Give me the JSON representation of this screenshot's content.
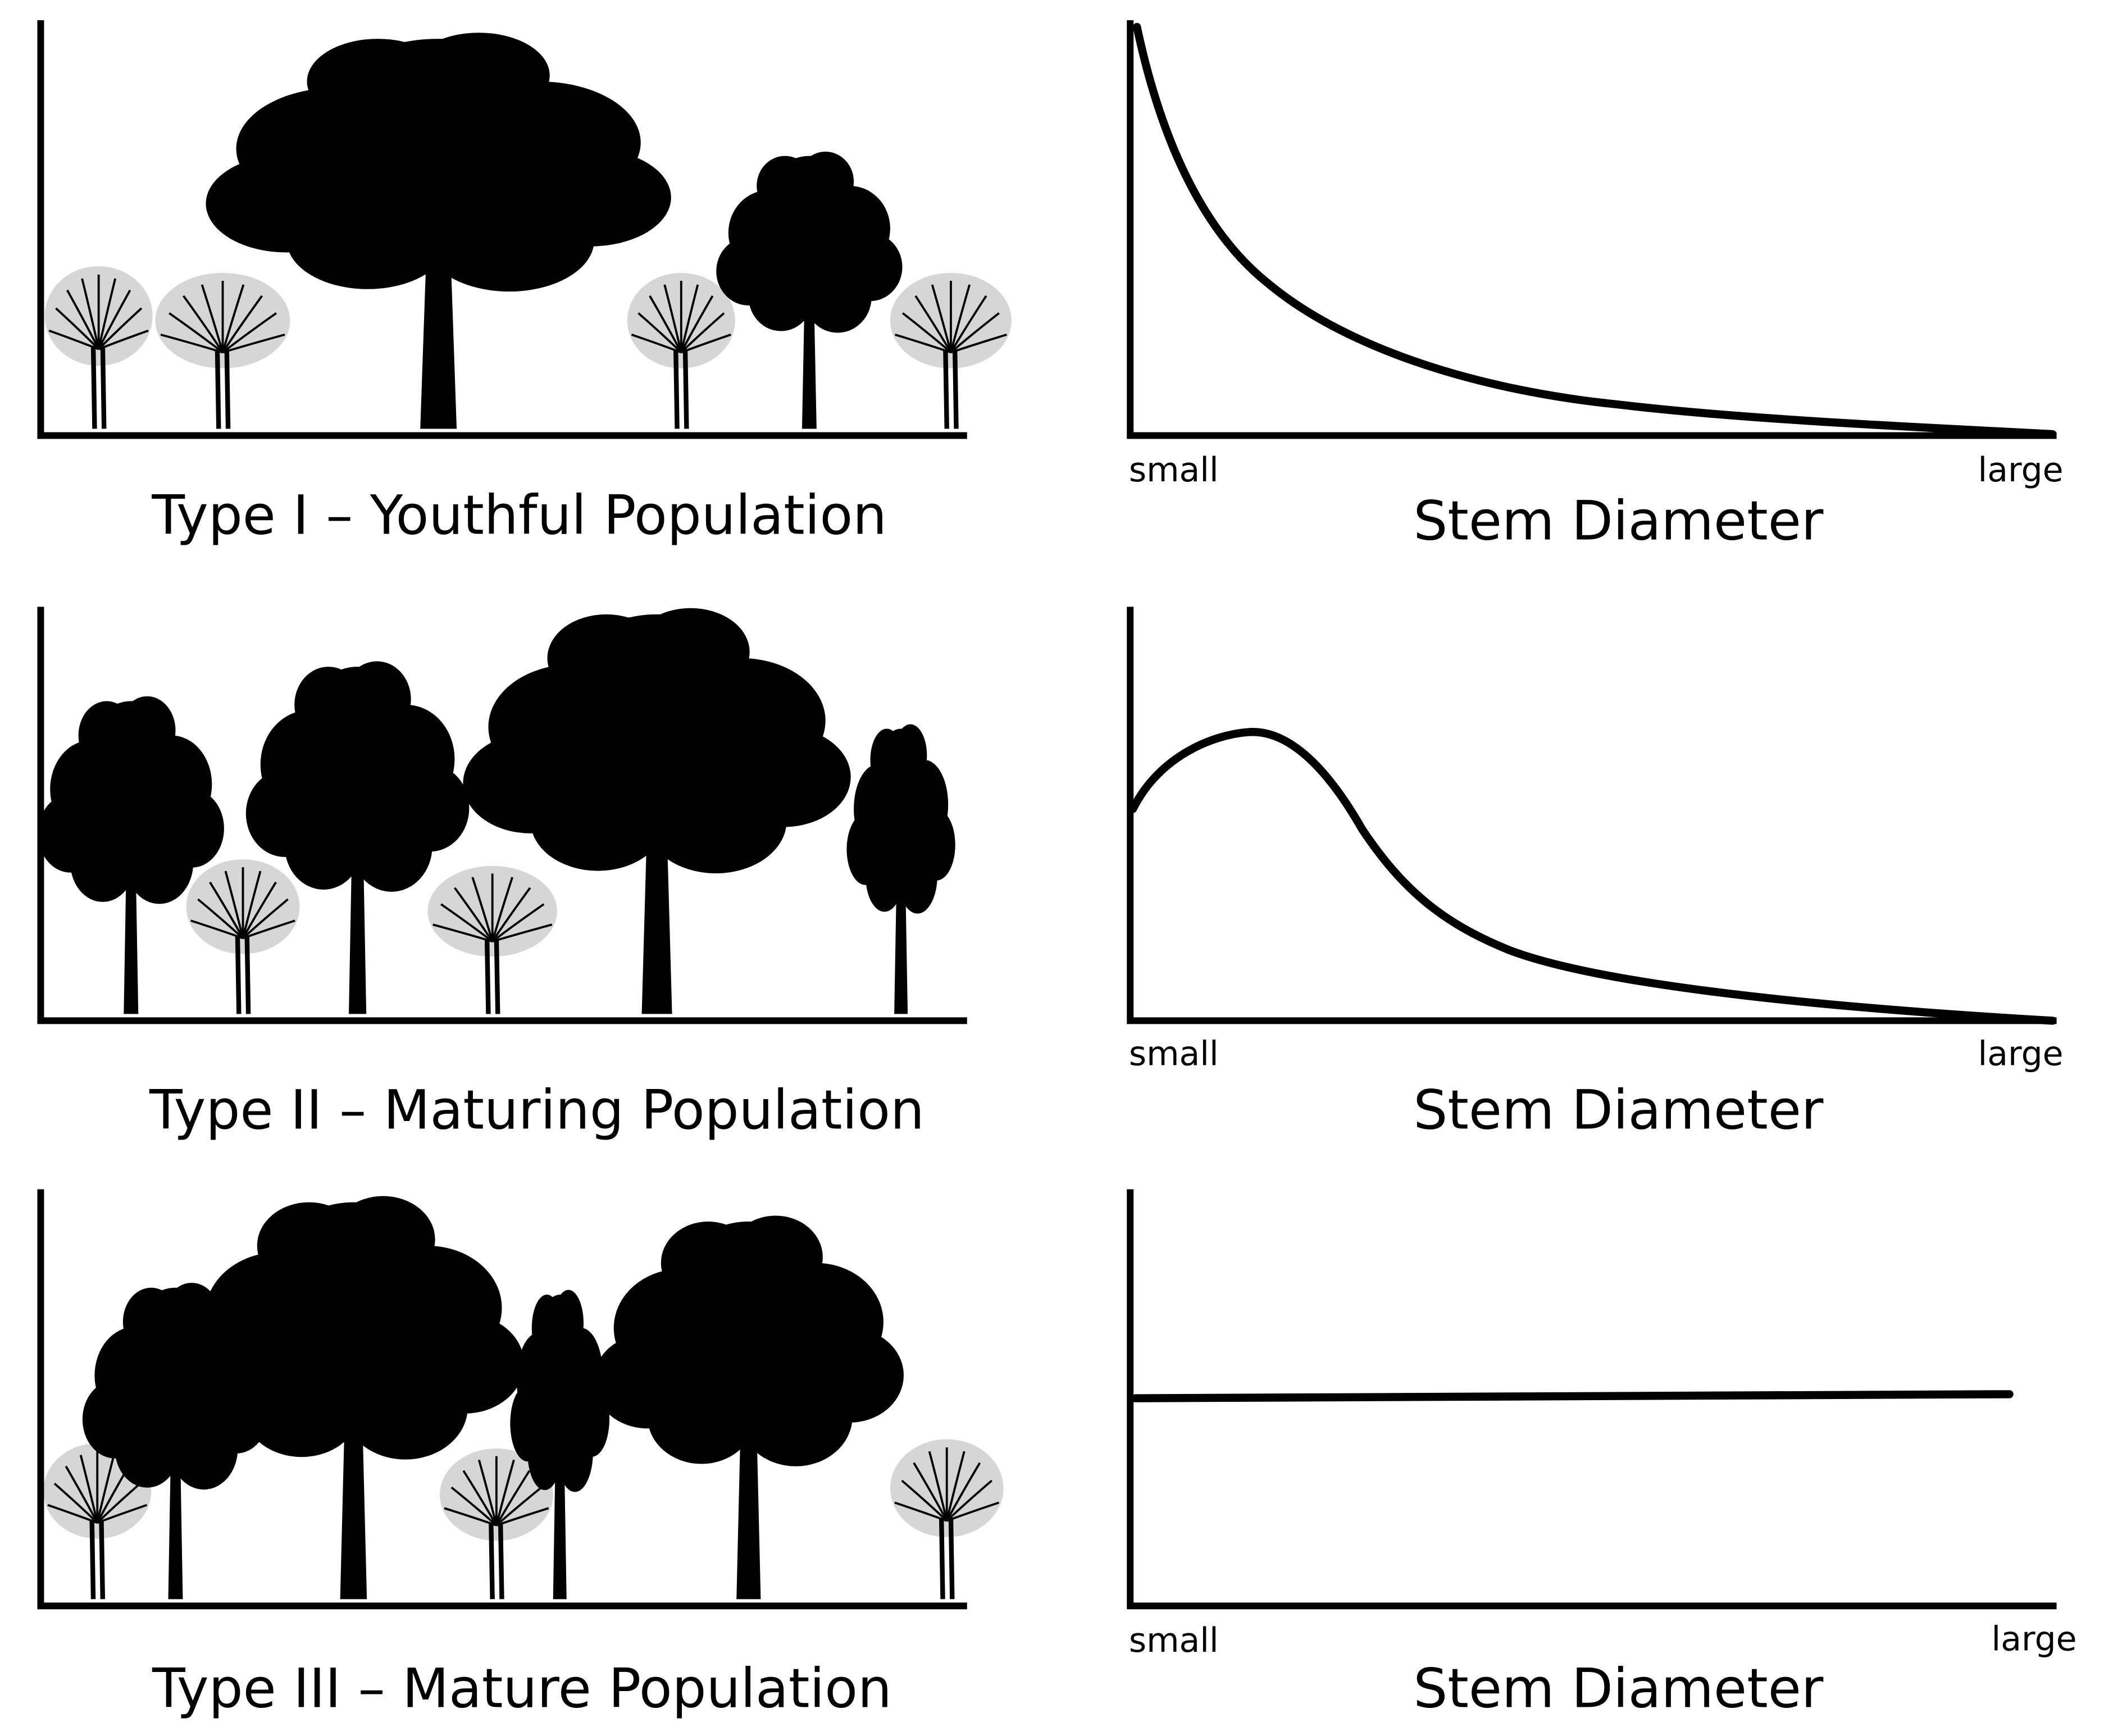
{
  "panels": [
    {
      "caption": "Type I – Youthful Population",
      "axis": {
        "min_label": "small",
        "max_label": "large",
        "title": "Stem Diameter"
      }
    },
    {
      "caption": "Type II – Maturing Population",
      "axis": {
        "min_label": "small",
        "max_label": "large",
        "title": "Stem Diameter"
      }
    },
    {
      "caption": "Type III – Mature Population",
      "axis": {
        "min_label": "small",
        "max_label": "large",
        "title": "Stem Diameter"
      }
    }
  ]
}
